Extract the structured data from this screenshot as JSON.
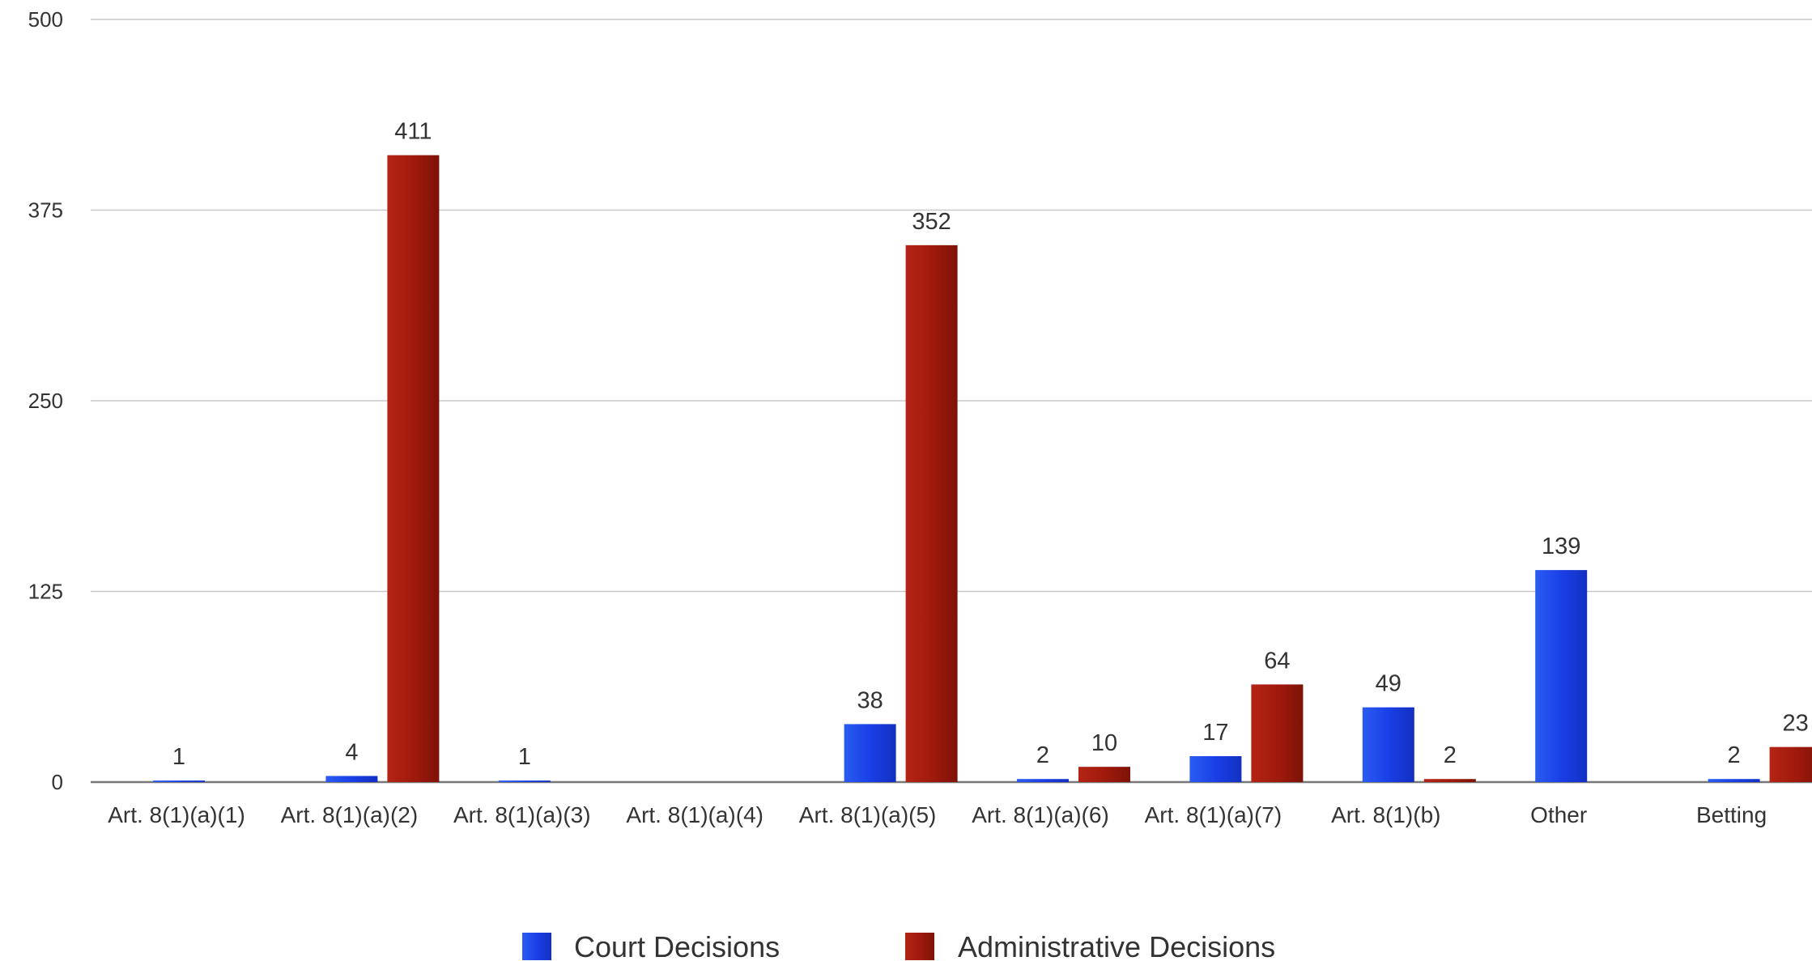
{
  "chart_data": {
    "type": "bar",
    "categories": [
      "Art. 8(1)(a)(1)",
      "Art. 8(1)(a)(2)",
      "Art. 8(1)(a)(3)",
      "Art. 8(1)(a)(4)",
      "Art. 8(1)(a)(5)",
      "Art. 8(1)(a)(6)",
      "Art. 8(1)(a)(7)",
      "Art. 8(1)(b)",
      "Other",
      "Betting"
    ],
    "series": [
      {
        "name": "Court Decisions",
        "color": "#1f3fe0",
        "values": [
          1,
          4,
          1,
          null,
          38,
          2,
          17,
          49,
          139,
          2
        ]
      },
      {
        "name": "Administrative Decisions",
        "color": "#a51d0e",
        "values": [
          null,
          411,
          null,
          null,
          352,
          10,
          64,
          2,
          null,
          23
        ]
      }
    ],
    "ylim": [
      0,
      500
    ],
    "yticks": [
      0,
      125,
      250,
      375,
      500
    ],
    "grid": true,
    "legend_position": "bottom-center",
    "title": "",
    "xlabel": "",
    "ylabel": ""
  }
}
